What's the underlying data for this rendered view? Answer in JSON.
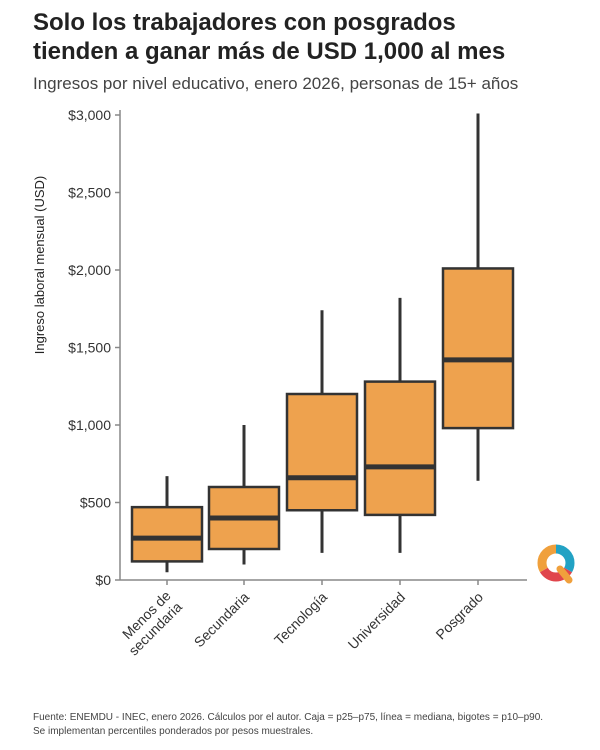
{
  "title_line1": "Solo los trabajadores con posgrados",
  "title_line2": "tienden a ganar más de USD 1,000 al mes",
  "subtitle": "Ingresos por nivel educativo, enero 2026, personas de 15+ años",
  "caption_line1": "Fuente: ENEMDU - INEC, enero 2026. Cálculos por el autor. Caja = p25–p75, línea = mediana, bigotes = p10–p90.",
  "caption_line2": "Se implementan percentiles ponderados por pesos muestrales.",
  "logo_icon": "q-logo-icon",
  "colors": {
    "box_fill": "#EEA24E",
    "box_stroke": "#333333",
    "axis": "#888888",
    "logo_teal": "#22A2C4",
    "logo_red": "#E0454C",
    "logo_orange": "#F0A03C"
  },
  "chart_data": {
    "type": "box",
    "ylabel": "Ingreso laboral mensual (USD)",
    "ylim": [
      0,
      3000
    ],
    "yticks": [
      0,
      500,
      1000,
      1500,
      2000,
      2500,
      3000
    ],
    "ytick_labels": [
      "$0",
      "$500",
      "$1,000",
      "$1,500",
      "$2,000",
      "$2,500",
      "$3,000"
    ],
    "grid": false,
    "categories": [
      [
        "Menos de",
        "secundaria"
      ],
      [
        "Secundaria"
      ],
      [
        "Tecnología"
      ],
      [
        "Universidad"
      ],
      [
        "Posgrado"
      ]
    ],
    "series": [
      {
        "p10": 50,
        "p25": 120,
        "median": 270,
        "p75": 470,
        "p90": 670
      },
      {
        "p10": 100,
        "p25": 200,
        "median": 400,
        "p75": 600,
        "p90": 1000
      },
      {
        "p10": 175,
        "p25": 450,
        "median": 660,
        "p75": 1200,
        "p90": 1740
      },
      {
        "p10": 175,
        "p25": 420,
        "median": 730,
        "p75": 1280,
        "p90": 1820
      },
      {
        "p10": 640,
        "p25": 980,
        "median": 1420,
        "p75": 2010,
        "p90": 3010
      }
    ]
  }
}
